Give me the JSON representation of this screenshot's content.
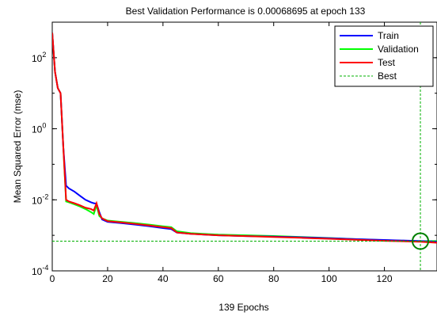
{
  "chart_data": {
    "type": "line",
    "title": "Best Validation Performance is 0.00068695 at epoch 133",
    "xlabel": "139 Epochs",
    "ylabel": "Mean Squared Error  (mse)",
    "xlim": [
      0,
      139
    ],
    "ylim": [
      0.0001,
      1000
    ],
    "yscale": "log",
    "xticks": [
      0,
      20,
      40,
      60,
      80,
      100,
      120
    ],
    "yticks": [
      {
        "value": 0.0001,
        "base": "10",
        "exp": "-4"
      },
      {
        "value": 0.01,
        "base": "10",
        "exp": "-2"
      },
      {
        "value": 1,
        "base": "10",
        "exp": "0"
      },
      {
        "value": 100,
        "base": "10",
        "exp": "2"
      }
    ],
    "grid": false,
    "legend_position": "top-right",
    "series": [
      {
        "name": "Train",
        "color": "#0000ff",
        "style": "solid",
        "points": [
          [
            0,
            500
          ],
          [
            1,
            40
          ],
          [
            2,
            14
          ],
          [
            3,
            10
          ],
          [
            4,
            0.3
          ],
          [
            5,
            0.025
          ],
          [
            6,
            0.021
          ],
          [
            8,
            0.017
          ],
          [
            10,
            0.013
          ],
          [
            12,
            0.01
          ],
          [
            14,
            0.0085
          ],
          [
            15,
            0.008
          ],
          [
            16,
            0.0078
          ],
          [
            17,
            0.0045
          ],
          [
            18,
            0.0028
          ],
          [
            20,
            0.0024
          ],
          [
            25,
            0.0022
          ],
          [
            30,
            0.002
          ],
          [
            35,
            0.0018
          ],
          [
            40,
            0.0016
          ],
          [
            43,
            0.0015
          ],
          [
            45,
            0.0012
          ],
          [
            50,
            0.0011
          ],
          [
            60,
            0.001
          ],
          [
            70,
            0.00095
          ],
          [
            80,
            0.00092
          ],
          [
            90,
            0.00088
          ],
          [
            100,
            0.00083
          ],
          [
            110,
            0.00078
          ],
          [
            120,
            0.00074
          ],
          [
            133,
            0.00069
          ],
          [
            139,
            0.00067
          ]
        ]
      },
      {
        "name": "Validation",
        "color": "#00ff00",
        "style": "solid",
        "points": [
          [
            0,
            500
          ],
          [
            1,
            40
          ],
          [
            2,
            14
          ],
          [
            3,
            10
          ],
          [
            4,
            0.3
          ],
          [
            5,
            0.009
          ],
          [
            6,
            0.0085
          ],
          [
            8,
            0.0075
          ],
          [
            10,
            0.0065
          ],
          [
            12,
            0.0055
          ],
          [
            14,
            0.0045
          ],
          [
            15,
            0.004
          ],
          [
            16,
            0.007
          ],
          [
            17,
            0.0035
          ],
          [
            18,
            0.003
          ],
          [
            20,
            0.0026
          ],
          [
            25,
            0.0024
          ],
          [
            30,
            0.0022
          ],
          [
            35,
            0.002
          ],
          [
            40,
            0.0018
          ],
          [
            43,
            0.0017
          ],
          [
            45,
            0.0013
          ],
          [
            50,
            0.00115
          ],
          [
            60,
            0.00105
          ],
          [
            70,
            0.001
          ],
          [
            80,
            0.00096
          ],
          [
            90,
            0.0009
          ],
          [
            100,
            0.00084
          ],
          [
            110,
            0.00078
          ],
          [
            120,
            0.00073
          ],
          [
            133,
            0.00068695
          ],
          [
            139,
            0.00069
          ]
        ]
      },
      {
        "name": "Test",
        "color": "#ff0000",
        "style": "solid",
        "points": [
          [
            0,
            500
          ],
          [
            1,
            40
          ],
          [
            2,
            14
          ],
          [
            3,
            10
          ],
          [
            4,
            0.3
          ],
          [
            5,
            0.01
          ],
          [
            6,
            0.009
          ],
          [
            8,
            0.008
          ],
          [
            10,
            0.007
          ],
          [
            12,
            0.006
          ],
          [
            14,
            0.0055
          ],
          [
            15,
            0.005
          ],
          [
            16,
            0.008
          ],
          [
            17,
            0.004
          ],
          [
            18,
            0.003
          ],
          [
            20,
            0.0025
          ],
          [
            25,
            0.0023
          ],
          [
            30,
            0.0021
          ],
          [
            35,
            0.0019
          ],
          [
            40,
            0.0017
          ],
          [
            43,
            0.0016
          ],
          [
            45,
            0.0012
          ],
          [
            50,
            0.0011
          ],
          [
            60,
            0.001
          ],
          [
            70,
            0.00095
          ],
          [
            80,
            0.0009
          ],
          [
            90,
            0.00085
          ],
          [
            100,
            0.0008
          ],
          [
            110,
            0.00075
          ],
          [
            120,
            0.0007
          ],
          [
            133,
            0.00066
          ],
          [
            139,
            0.00062
          ]
        ]
      },
      {
        "name": "Best",
        "color": "#00b000",
        "style": "dashed",
        "best_epoch": 133,
        "best_value": 0.00068695
      }
    ]
  }
}
